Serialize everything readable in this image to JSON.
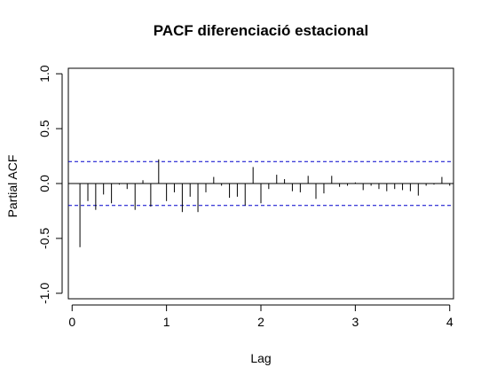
{
  "chart_data": {
    "type": "bar",
    "title": "PACF diferenciació estacional",
    "xlabel": "Lag",
    "ylabel": "Partial ACF",
    "xlim": [
      -0.04,
      4.04
    ],
    "ylim": [
      -1.05,
      1.05
    ],
    "xticks": [
      "0",
      "1",
      "2",
      "3",
      "4"
    ],
    "yticks": [
      "-1.0",
      "-0.5",
      "0.0",
      "0.5",
      "1.0"
    ],
    "confidence_band": 0.2,
    "colors": {
      "bars": "#000000",
      "band": "#0000cc",
      "zero": "#000000"
    },
    "lags": [
      0.083,
      0.167,
      0.25,
      0.333,
      0.417,
      0.5,
      0.583,
      0.667,
      0.75,
      0.833,
      0.917,
      1.0,
      1.083,
      1.167,
      1.25,
      1.333,
      1.417,
      1.5,
      1.583,
      1.667,
      1.75,
      1.833,
      1.917,
      2.0,
      2.083,
      2.167,
      2.25,
      2.333,
      2.417,
      2.5,
      2.583,
      2.667,
      2.75,
      2.833,
      2.917,
      3.0,
      3.083,
      3.167,
      3.25,
      3.333,
      3.417,
      3.5,
      3.583,
      3.667,
      3.75,
      3.833,
      3.917,
      4.0
    ],
    "values": [
      -0.58,
      -0.16,
      -0.24,
      -0.1,
      -0.18,
      -0.01,
      -0.05,
      -0.24,
      0.03,
      -0.21,
      0.22,
      -0.16,
      -0.08,
      -0.26,
      -0.12,
      -0.26,
      -0.08,
      0.06,
      -0.02,
      -0.13,
      -0.12,
      -0.2,
      0.15,
      -0.18,
      -0.05,
      0.08,
      0.04,
      -0.07,
      -0.08,
      0.07,
      -0.14,
      -0.09,
      0.07,
      -0.03,
      -0.02,
      0.01,
      -0.06,
      -0.02,
      -0.05,
      -0.07,
      -0.05,
      -0.06,
      -0.07,
      -0.11,
      -0.02,
      -0.01,
      0.06,
      -0.02
    ]
  }
}
